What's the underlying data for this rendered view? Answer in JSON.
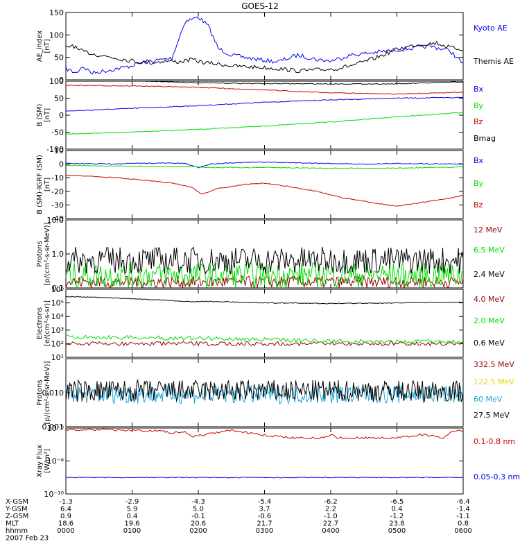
{
  "title": "GOES-12",
  "colors": {
    "black": "#000000",
    "blue": "#0000ee",
    "green": "#00dd00",
    "red": "#cc0000",
    "darkred": "#990000",
    "yellow": "#e6d200",
    "cyan": "#1aa6d8"
  },
  "footer": {
    "rows": [
      {
        "label": "X-GSM",
        "values": [
          "-1.3",
          "-2.9",
          "-4.3",
          "-5.4",
          "-6.2",
          "-6.5",
          "-6.4"
        ]
      },
      {
        "label": "Y-GSM",
        "values": [
          "6.4",
          "5.9",
          "5.0",
          "3.7",
          "2.2",
          "0.4",
          "-1.4"
        ]
      },
      {
        "label": "Z-GSM",
        "values": [
          "0.9",
          "0.4",
          "-0.1",
          "-0.6",
          "-1.0",
          "-1.2",
          "-1.1"
        ]
      },
      {
        "label": "MLT",
        "values": [
          "18.6",
          "19.6",
          "20.6",
          "21.7",
          "22.7",
          "23.8",
          "0.8"
        ]
      },
      {
        "label": "hhmm",
        "values": [
          "0000",
          "0100",
          "0200",
          "0300",
          "0400",
          "0500",
          "0600"
        ]
      }
    ],
    "date": "2007 Feb 23"
  },
  "chart_data": [
    {
      "type": "line",
      "ylabel": [
        "AE_index",
        "[nT]"
      ],
      "ylim": [
        0,
        150
      ],
      "scale": "linear",
      "yticks": [
        0,
        50,
        100,
        150
      ],
      "yticklabels": [
        "0",
        "50",
        "100",
        "150"
      ],
      "series": [
        {
          "name": "Kyoto AE",
          "color": "blue",
          "t": [
            0,
            0.15,
            0.25,
            0.4,
            0.6,
            0.9,
            1.2,
            1.45,
            1.6,
            1.8,
            2.0,
            2.15,
            2.3,
            2.5,
            2.7,
            2.9,
            3.2,
            3.5,
            3.8,
            4.0,
            4.3,
            4.6,
            4.9,
            5.2,
            5.5,
            5.8,
            6.0
          ],
          "y": [
            25,
            15,
            30,
            15,
            20,
            28,
            40,
            45,
            48,
            130,
            140,
            120,
            70,
            55,
            50,
            45,
            40,
            55,
            45,
            42,
            55,
            60,
            65,
            70,
            75,
            65,
            35
          ]
        },
        {
          "name": "Themis AE",
          "color": "black",
          "t": [
            0,
            0.1,
            0.2,
            0.35,
            0.5,
            0.7,
            0.9,
            1.1,
            1.3,
            1.5,
            1.7,
            1.9,
            2.1,
            2.3,
            2.6,
            2.9,
            3.2,
            3.5,
            3.8,
            4.1,
            4.4,
            4.7,
            5.0,
            5.3,
            5.6,
            5.8,
            6.0
          ],
          "y": [
            70,
            78,
            65,
            60,
            55,
            50,
            45,
            40,
            38,
            42,
            40,
            45,
            38,
            35,
            30,
            28,
            25,
            20,
            22,
            25,
            35,
            50,
            68,
            78,
            82,
            72,
            68
          ]
        }
      ]
    },
    {
      "type": "line",
      "ylabel": [
        "B (SM)",
        "[nT]"
      ],
      "ylim": [
        -100,
        100
      ],
      "scale": "linear",
      "yticks": [
        -100,
        -50,
        0,
        50,
        100
      ],
      "yticklabels": [
        "-100",
        "-50",
        "0",
        "50",
        "100"
      ],
      "series": [
        {
          "name": "Bx",
          "color": "blue",
          "t": [
            0,
            1,
            2,
            3,
            4,
            5,
            6
          ],
          "y": [
            12,
            20,
            28,
            38,
            45,
            50,
            52
          ]
        },
        {
          "name": "By",
          "color": "green",
          "t": [
            0,
            1,
            2,
            3,
            4,
            5,
            6
          ],
          "y": [
            -55,
            -50,
            -42,
            -32,
            -20,
            -5,
            8
          ]
        },
        {
          "name": "Bz",
          "color": "red",
          "t": [
            0,
            1,
            2,
            3,
            4,
            5,
            6
          ],
          "y": [
            88,
            86,
            82,
            74,
            66,
            62,
            68
          ]
        },
        {
          "name": "Bmag",
          "color": "black",
          "t": [
            0,
            1,
            2,
            3,
            4,
            5,
            6
          ],
          "y": [
            105,
            102,
            95,
            93,
            92,
            92,
            98
          ]
        }
      ]
    },
    {
      "type": "line",
      "ylabel": [
        "B (SM)-IGRF (SM)",
        "[nT]"
      ],
      "ylim": [
        -40,
        10
      ],
      "scale": "linear",
      "yticks": [
        -40,
        -30,
        -20,
        -10,
        0,
        10
      ],
      "yticklabels": [
        "-40",
        "-30",
        "-20",
        "-10",
        "0",
        "10"
      ],
      "series": [
        {
          "name": "Bx",
          "color": "blue",
          "t": [
            0,
            0.5,
            1,
            1.5,
            1.8,
            2.0,
            2.2,
            2.5,
            3,
            3.5,
            4,
            4.5,
            5,
            5.5,
            6
          ],
          "y": [
            0.5,
            0.2,
            0.5,
            0.8,
            0.5,
            -2.5,
            0.2,
            1,
            1.5,
            1,
            0.5,
            0,
            0.5,
            0.3,
            0.2
          ]
        },
        {
          "name": "By",
          "color": "green",
          "t": [
            0,
            1,
            2,
            2.2,
            3,
            4,
            5,
            6
          ],
          "y": [
            -1,
            -1.5,
            -2,
            -2.5,
            -2.5,
            -3,
            -3,
            -2
          ]
        },
        {
          "name": "Bz",
          "color": "red",
          "t": [
            0,
            0.4,
            0.8,
            1.2,
            1.6,
            1.9,
            2.05,
            2.3,
            2.7,
            3.0,
            3.3,
            3.8,
            4.2,
            4.6,
            5.0,
            5.4,
            5.8,
            6.0
          ],
          "y": [
            -8,
            -9,
            -10,
            -12,
            -14,
            -17,
            -22,
            -18,
            -15,
            -14,
            -16,
            -20,
            -25,
            -28,
            -31,
            -28,
            -25,
            -23
          ]
        }
      ]
    },
    {
      "type": "line",
      "ylabel": [
        "Protons",
        "[p/(cm²-s-sr-MeV)]"
      ],
      "ylim": [
        0.1,
        10
      ],
      "scale": "log",
      "yticks": [
        0.1,
        1,
        10
      ],
      "yticklabels": [
        "0.1",
        "1.0",
        "10.0"
      ],
      "series": [
        {
          "name": "12 MeV",
          "color": "darkred",
          "t": [],
          "y": []
        },
        {
          "name": "6.5 MeV",
          "color": "green",
          "t": [],
          "y": []
        },
        {
          "name": "2.4 MeV",
          "color": "black",
          "t": [],
          "y": []
        }
      ]
    },
    {
      "type": "line",
      "ylabel": [
        "Electrons",
        "[e/(cm²-s-sr)]"
      ],
      "ylim": [
        10,
        1000000
      ],
      "scale": "log",
      "yticks": [
        10,
        100,
        1000,
        10000,
        100000,
        1000000
      ],
      "yticklabels": [
        "10¹",
        "10²",
        "10³",
        "10⁴",
        "10⁵",
        "10⁶"
      ],
      "series": [
        {
          "name": "4.0 MeV",
          "color": "darkred",
          "t": [
            0,
            6
          ],
          "y": [
            100,
            100
          ]
        },
        {
          "name": "2.0 MeV",
          "color": "green",
          "t": [
            0,
            1,
            2,
            3,
            4,
            5,
            6
          ],
          "y": [
            320,
            280,
            250,
            200,
            150,
            140,
            150
          ]
        },
        {
          "name": "0.6 MeV",
          "color": "black",
          "t": [
            0,
            1,
            1.9,
            2.1,
            3,
            4,
            5,
            6
          ],
          "y": [
            300000,
            200000,
            120000,
            130000,
            100000,
            90000,
            100000,
            110000
          ]
        }
      ]
    },
    {
      "type": "line",
      "ylabel": [
        "Protons",
        "[p/(cm²-s-sr-MeV)]"
      ],
      "ylim": [
        0.001,
        0.1
      ],
      "scale": "log",
      "yticks": [
        0.001,
        0.01,
        0.1
      ],
      "yticklabels": [
        "0.001",
        "0.010",
        ""
      ],
      "series": [
        {
          "name": "332.5 MeV",
          "color": "darkred",
          "t": [],
          "y": []
        },
        {
          "name": "122.5 MeV",
          "color": "yellow",
          "t": [],
          "y": []
        },
        {
          "name": "60 MeV",
          "color": "cyan",
          "t": [],
          "y": []
        },
        {
          "name": "27.5 MeV",
          "color": "black",
          "t": [],
          "y": []
        }
      ]
    },
    {
      "type": "line",
      "ylabel": [
        "Xray Flux",
        "[W/m²]"
      ],
      "ylim": [
        1e-10,
        1e-06
      ],
      "scale": "log",
      "yticks": [
        1e-10,
        1e-08,
        1e-06
      ],
      "yticklabels": [
        "10⁻¹⁰",
        "10⁻⁸",
        "10⁻⁶"
      ],
      "series": [
        {
          "name": "0.1-0.8 nm",
          "color": "red",
          "t": [
            0,
            0.5,
            1,
            1.4,
            1.6,
            1.8,
            1.9,
            2.1,
            2.5,
            2.9,
            3.2,
            3.5,
            3.9,
            4.0,
            4.1,
            4.5,
            4.8,
            5.0,
            5.4,
            5.7,
            5.9,
            6.0
          ],
          "y": [
            8e-07,
            8e-07,
            7e-07,
            7e-07,
            5e-07,
            6e-07,
            3e-07,
            4e-07,
            7e-07,
            4e-07,
            3e-07,
            2.5e-07,
            2.5e-07,
            4e-07,
            2.5e-07,
            2.5e-07,
            2.5e-07,
            2.5e-07,
            4e-07,
            2.5e-07,
            7e-07,
            6e-07
          ]
        },
        {
          "name": "0.05-0.3 nm",
          "color": "blue",
          "t": [
            0,
            6
          ],
          "y": [
            1e-09,
            1e-09
          ]
        }
      ]
    }
  ]
}
